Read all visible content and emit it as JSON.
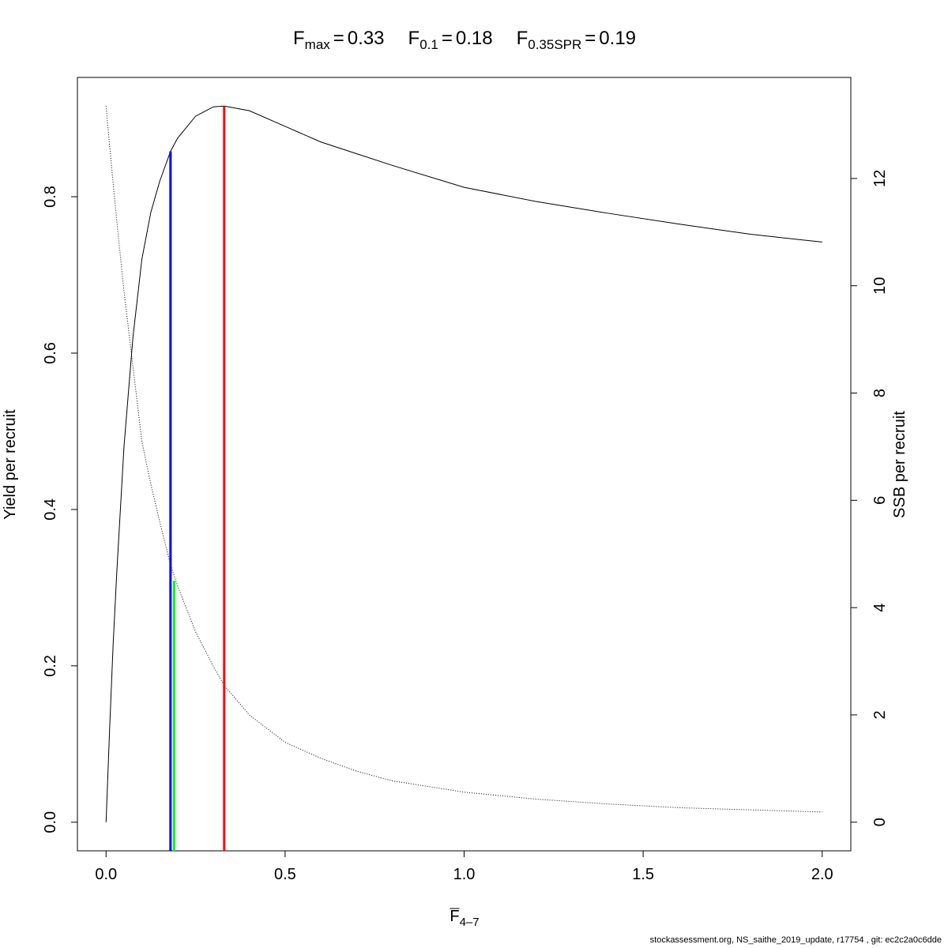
{
  "chart_data": {
    "type": "line",
    "reference_points": [
      {
        "symbol": "F",
        "subscript": "max",
        "relation": "=",
        "x": 0.33,
        "y": 0.916,
        "color": "#ff0000"
      },
      {
        "symbol": "F",
        "subscript": "0.1",
        "relation": "=",
        "x": 0.18,
        "y": 0.858,
        "color": "#0000ff"
      },
      {
        "symbol": "F",
        "subscript": "0.35SPR",
        "relation": "=",
        "x": 0.19,
        "y": 4.5,
        "axis": "y2",
        "color": "#00ff00"
      }
    ],
    "x_label": {
      "symbol": "F",
      "subscript": "4–7"
    },
    "y_label": "Yield per recruit",
    "y2_label": "SSB per recruit",
    "footer": "stockassessment.org, NS_saithe_2019_update, r17754 , git: ec2c2a0c6dde",
    "x": [
      0,
      0.01,
      0.02,
      0.03,
      0.05,
      0.075,
      0.1,
      0.125,
      0.15,
      0.18,
      0.2,
      0.25,
      0.3,
      0.33,
      0.4,
      0.5,
      0.6,
      0.7,
      0.8,
      1.0,
      1.2,
      1.4,
      1.6,
      1.8,
      2.0
    ],
    "series": [
      {
        "name": "Yield per recruit",
        "color": "#000000",
        "style": "solid",
        "values": [
          0,
          0.12,
          0.23,
          0.32,
          0.48,
          0.62,
          0.72,
          0.78,
          0.82,
          0.858,
          0.875,
          0.903,
          0.915,
          0.916,
          0.91,
          0.89,
          0.87,
          0.855,
          0.84,
          0.812,
          0.794,
          0.779,
          0.765,
          0.752,
          0.742
        ]
      },
      {
        "name": "SSB per recruit",
        "color": "#000000",
        "style": "dotted",
        "axis": "y2",
        "values": [
          13.35,
          12.6,
          11.9,
          11.2,
          9.9,
          8.5,
          7.1,
          6.3,
          5.6,
          4.8,
          4.4,
          3.55,
          2.9,
          2.55,
          2.0,
          1.49,
          1.19,
          0.95,
          0.77,
          0.56,
          0.43,
          0.34,
          0.27,
          0.23,
          0.19
        ]
      }
    ],
    "xlim": [
      -0.08,
      2.08
    ],
    "ylim": [
      -0.0366,
      0.9526
    ],
    "y2lim": [
      -0.534,
      13.884
    ],
    "xticks": [
      {
        "value": 0,
        "label": "0.0"
      },
      {
        "value": 0.5,
        "label": "0.5"
      },
      {
        "value": 1,
        "label": "1.0"
      },
      {
        "value": 1.5,
        "label": "1.5"
      },
      {
        "value": 2,
        "label": "2.0"
      }
    ],
    "yticks": [
      {
        "value": 0,
        "label": "0.0"
      },
      {
        "value": 0.2,
        "label": "0.2"
      },
      {
        "value": 0.4,
        "label": "0.4"
      },
      {
        "value": 0.6,
        "label": "0.6"
      },
      {
        "value": 0.8,
        "label": "0.8"
      }
    ],
    "y2ticks": [
      0,
      2,
      4,
      6,
      8,
      10,
      12
    ]
  }
}
